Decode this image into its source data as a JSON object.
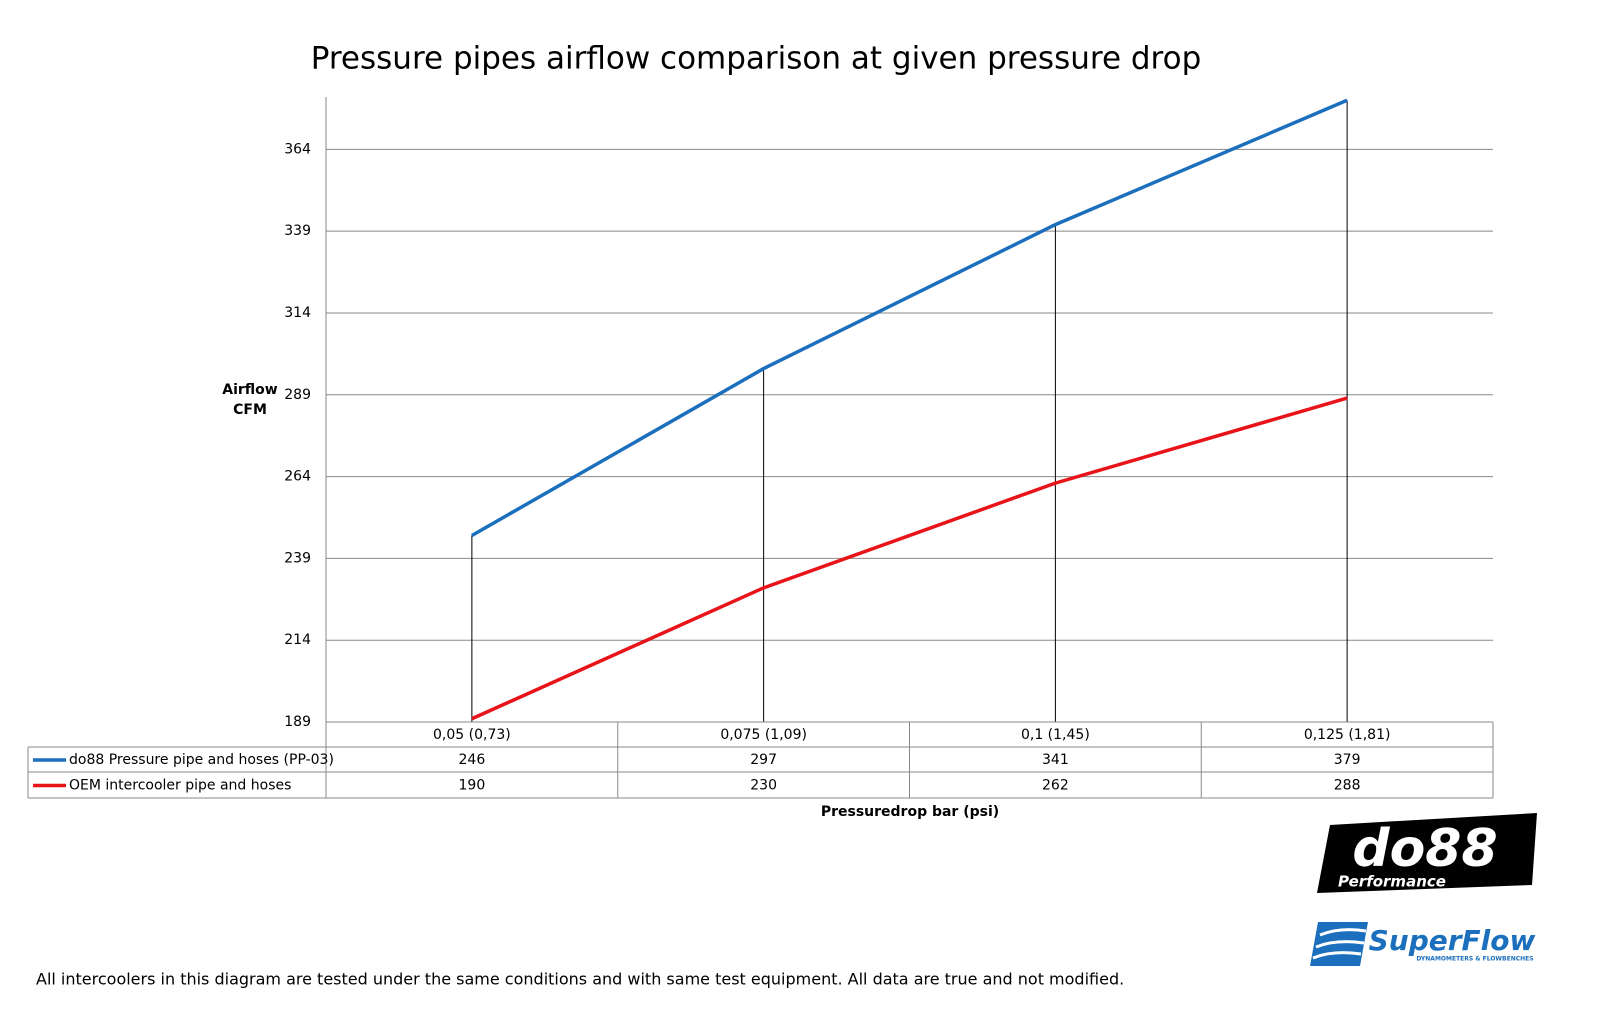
{
  "chart_data": {
    "type": "line",
    "title": "Pressure pipes airflow comparison at given pressure drop",
    "y_label": "Airflow CFM",
    "x_label": "Pressuredrop bar (psi)",
    "categories": [
      "0,05 (0,73)",
      "0,075 (1,09)",
      "0,1 (1,45)",
      "0,125 (1,81)"
    ],
    "series": [
      {
        "name": "do88 Pressure pipe and hoses (PP-03)",
        "color": "#1b6fbd",
        "values": [
          246,
          297,
          341,
          379
        ]
      },
      {
        "name": "OEM intercooler pipe and hoses",
        "color": "#e8141a",
        "values": [
          190,
          230,
          262,
          288
        ]
      }
    ],
    "ylim": [
      189,
      380
    ],
    "yticks": [
      189,
      214,
      239,
      264,
      289,
      314,
      339,
      364
    ],
    "grid": true,
    "drop_lines": true,
    "data_table": true,
    "note": "All intercoolers in this diagram are tested under the same conditions and with same test equipment. All data are true and not modified."
  },
  "logos": {
    "do88": "do88",
    "do88_sub": "Performance",
    "superflow": "SuperFlow",
    "superflow_sub": "DYNAMOMETERS & FLOWBENCHES"
  }
}
